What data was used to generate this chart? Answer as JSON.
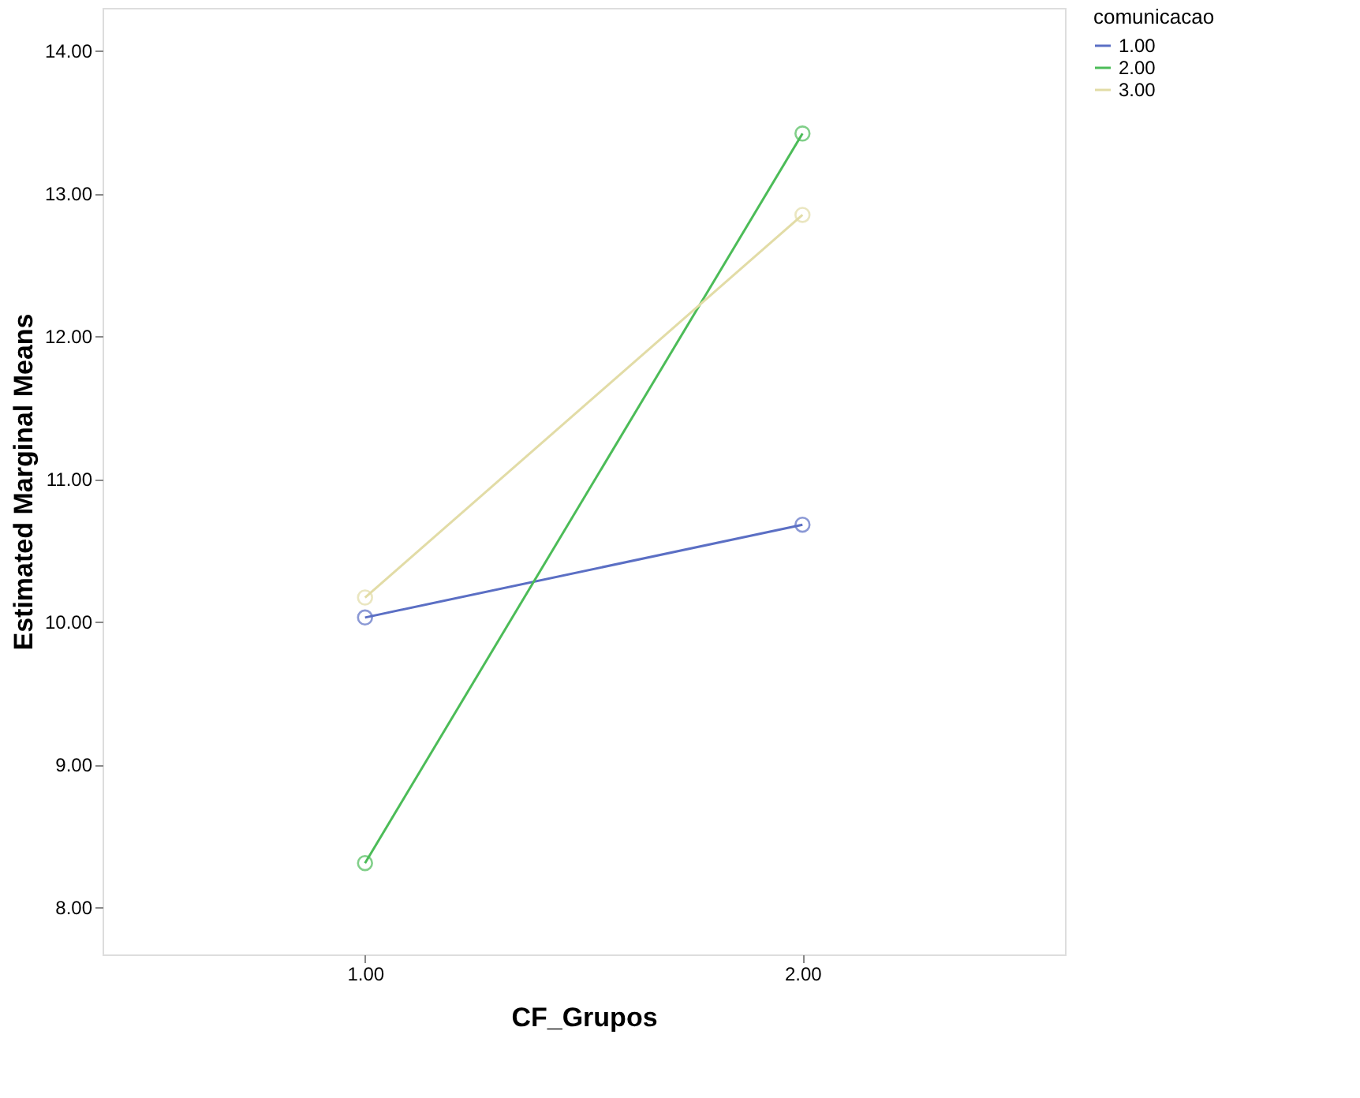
{
  "chart_data": {
    "type": "line",
    "xlabel": "CF_Grupos",
    "ylabel": "Estimated Marginal Means",
    "legend_title": "comunicacao",
    "categories": [
      "1.00",
      "2.00"
    ],
    "series": [
      {
        "name": "1.00",
        "color": "#5b6fc4",
        "values": [
          10.03,
          10.68
        ]
      },
      {
        "name": "2.00",
        "color": "#4cbc58",
        "values": [
          8.31,
          13.42
        ]
      },
      {
        "name": "3.00",
        "color": "#e2dca6",
        "values": [
          10.17,
          12.85
        ]
      }
    ],
    "ylim": [
      7.67,
      14.3
    ],
    "yticks": [
      {
        "value": 8,
        "label": "8.00"
      },
      {
        "value": 9,
        "label": "9.00"
      },
      {
        "value": 10,
        "label": "10.00"
      },
      {
        "value": 11,
        "label": "11.00"
      },
      {
        "value": 12,
        "label": "12.00"
      },
      {
        "value": 13,
        "label": "13.00"
      },
      {
        "value": 14,
        "label": "14.00"
      }
    ],
    "marker": "circle",
    "line_style": "solid",
    "grid": false,
    "legend": "top right"
  }
}
